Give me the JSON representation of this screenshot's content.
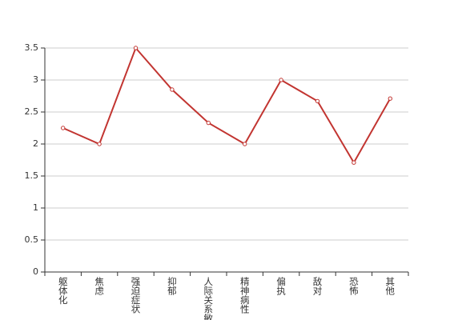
{
  "chart_data": {
    "type": "line",
    "categories": [
      "躯体化",
      "焦虑",
      "强迫症状",
      "抑郁",
      "人际关系敏感",
      "精神病性",
      "偏执",
      "敌对",
      "恐怖",
      "其他"
    ],
    "values": [
      2.25,
      2.0,
      3.5,
      2.85,
      2.33,
      2.0,
      3.0,
      2.67,
      1.71,
      2.71
    ],
    "color": "#c23531",
    "ylim": [
      0,
      3.5
    ],
    "yticks": [
      0,
      0.5,
      1,
      1.5,
      2,
      2.5,
      3,
      3.5
    ],
    "grid": true
  }
}
